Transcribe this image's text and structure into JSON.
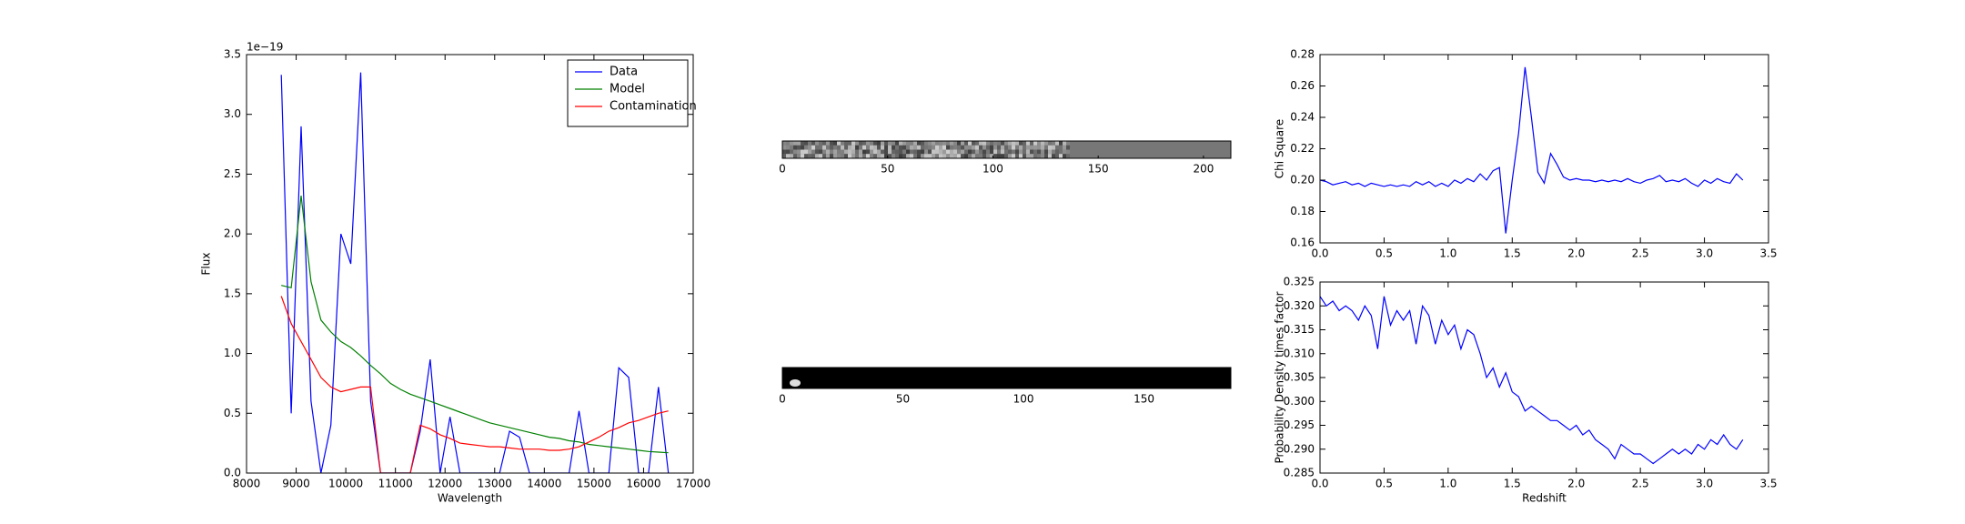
{
  "chart_data": [
    {
      "type": "line",
      "xlabel": "Wavelength",
      "ylabel": "Flux",
      "offset_label": "1e−19",
      "x": [
        8700,
        8900,
        9100,
        9300,
        9500,
        9700,
        9900,
        10100,
        10300,
        10500,
        10700,
        10900,
        11100,
        11300,
        11500,
        11700,
        11900,
        12100,
        12300,
        12500,
        12700,
        12900,
        13100,
        13300,
        13500,
        13700,
        13900,
        14100,
        14300,
        14500,
        14700,
        14900,
        15100,
        15300,
        15500,
        15700,
        15900,
        16100,
        16300,
        16500
      ],
      "series": [
        {
          "name": "Data",
          "color": "#0000ff",
          "values": [
            3.33,
            0.5,
            2.9,
            0.6,
            0,
            0.4,
            2.0,
            1.75,
            3.35,
            0.6,
            0,
            0,
            0,
            0,
            0.35,
            0.95,
            0,
            0.47,
            0,
            0,
            0,
            0,
            0,
            0.35,
            0.3,
            0,
            0,
            0,
            0,
            0,
            0.52,
            0,
            0,
            0,
            0.88,
            0.8,
            0,
            0,
            0.72,
            0
          ]
        },
        {
          "name": "Model",
          "color": "#008000",
          "values": [
            1.57,
            1.55,
            2.32,
            1.6,
            1.28,
            1.18,
            1.1,
            1.05,
            0.98,
            0.9,
            0.83,
            0.75,
            0.7,
            0.66,
            0.63,
            0.6,
            0.57,
            0.54,
            0.51,
            0.48,
            0.45,
            0.42,
            0.4,
            0.38,
            0.36,
            0.34,
            0.32,
            0.3,
            0.29,
            0.27,
            0.26,
            0.24,
            0.23,
            0.22,
            0.21,
            0.2,
            0.19,
            0.18,
            0.175,
            0.17
          ]
        },
        {
          "name": "Contamination",
          "color": "#ff0000",
          "values": [
            1.48,
            1.25,
            1.1,
            0.95,
            0.8,
            0.72,
            0.68,
            0.7,
            0.72,
            0.72,
            0,
            0,
            0,
            0,
            0.4,
            0.37,
            0.32,
            0.29,
            0.25,
            0.24,
            0.23,
            0.22,
            0.22,
            0.21,
            0.2,
            0.2,
            0.2,
            0.19,
            0.19,
            0.2,
            0.22,
            0.26,
            0.3,
            0.35,
            0.38,
            0.42,
            0.44,
            0.47,
            0.5,
            0.52
          ]
        }
      ],
      "xlim": [
        8000,
        17000
      ],
      "xticks": [
        8000,
        9000,
        10000,
        11000,
        12000,
        13000,
        14000,
        15000,
        16000,
        17000
      ],
      "ylim": [
        0,
        3.5
      ],
      "yticks": [
        {
          "value": 0,
          "label": "0.0"
        },
        0.5,
        {
          "value": 1,
          "label": "1.0"
        },
        1.5,
        {
          "value": 2,
          "label": "2.0"
        },
        2.5,
        {
          "value": 3,
          "label": "3.0"
        },
        3.5
      ],
      "legend": "upper right"
    },
    {
      "type": "image",
      "xlim": [
        0,
        213
      ],
      "xticks": [
        0,
        50,
        100,
        150,
        200
      ]
    },
    {
      "type": "image",
      "xlim": [
        0,
        186
      ],
      "xticks": [
        0,
        50,
        100,
        150
      ]
    },
    {
      "type": "line",
      "ylabel": "Chi Square",
      "color": "#0000ff",
      "x": [
        0,
        0.05,
        0.1,
        0.15,
        0.2,
        0.25,
        0.3,
        0.35,
        0.4,
        0.45,
        0.5,
        0.55,
        0.6,
        0.65,
        0.7,
        0.75,
        0.8,
        0.85,
        0.9,
        0.95,
        1.0,
        1.05,
        1.1,
        1.15,
        1.2,
        1.25,
        1.3,
        1.35,
        1.4,
        1.45,
        1.5,
        1.55,
        1.6,
        1.65,
        1.7,
        1.75,
        1.8,
        1.85,
        1.9,
        1.95,
        2.0,
        2.05,
        2.1,
        2.15,
        2.2,
        2.25,
        2.3,
        2.35,
        2.4,
        2.45,
        2.5,
        2.55,
        2.6,
        2.65,
        2.7,
        2.75,
        2.8,
        2.85,
        2.9,
        2.95,
        3.0,
        3.05,
        3.1,
        3.15,
        3.2,
        3.25,
        3.3
      ],
      "values": [
        0.2,
        0.199,
        0.197,
        0.198,
        0.199,
        0.197,
        0.198,
        0.196,
        0.198,
        0.197,
        0.196,
        0.197,
        0.196,
        0.197,
        0.196,
        0.199,
        0.197,
        0.199,
        0.196,
        0.198,
        0.196,
        0.2,
        0.198,
        0.201,
        0.199,
        0.204,
        0.2,
        0.206,
        0.208,
        0.166,
        0.2,
        0.23,
        0.272,
        0.24,
        0.205,
        0.198,
        0.217,
        0.21,
        0.202,
        0.2,
        0.201,
        0.2,
        0.2,
        0.199,
        0.2,
        0.199,
        0.2,
        0.199,
        0.201,
        0.199,
        0.198,
        0.2,
        0.201,
        0.203,
        0.199,
        0.2,
        0.199,
        0.201,
        0.198,
        0.196,
        0.2,
        0.198,
        0.201,
        0.199,
        0.198,
        0.204,
        0.2
      ],
      "xlim": [
        0,
        3.5
      ],
      "xticks": [
        {
          "value": 0,
          "label": "0.0"
        },
        0.5,
        {
          "value": 1,
          "label": "1.0"
        },
        1.5,
        {
          "value": 2,
          "label": "2.0"
        },
        2.5,
        {
          "value": 3,
          "label": "3.0"
        },
        3.5
      ],
      "ylim": [
        0.16,
        0.28
      ],
      "yticks": [
        0.16,
        0.18,
        {
          "value": 0.2,
          "label": "0.20"
        },
        0.22,
        0.24,
        0.26,
        0.28
      ]
    },
    {
      "type": "line",
      "xlabel": "Redshift",
      "ylabel": "Probability Density times factor",
      "color": "#0000ff",
      "x": [
        0,
        0.05,
        0.1,
        0.15,
        0.2,
        0.25,
        0.3,
        0.35,
        0.4,
        0.45,
        0.5,
        0.55,
        0.6,
        0.65,
        0.7,
        0.75,
        0.8,
        0.85,
        0.9,
        0.95,
        1.0,
        1.05,
        1.1,
        1.15,
        1.2,
        1.25,
        1.3,
        1.35,
        1.4,
        1.45,
        1.5,
        1.55,
        1.6,
        1.65,
        1.7,
        1.75,
        1.8,
        1.85,
        1.9,
        1.95,
        2.0,
        2.05,
        2.1,
        2.15,
        2.2,
        2.25,
        2.3,
        2.35,
        2.4,
        2.45,
        2.5,
        2.55,
        2.6,
        2.65,
        2.7,
        2.75,
        2.8,
        2.85,
        2.9,
        2.95,
        3.0,
        3.05,
        3.1,
        3.15,
        3.2,
        3.25,
        3.3
      ],
      "values": [
        0.322,
        0.32,
        0.321,
        0.319,
        0.32,
        0.319,
        0.317,
        0.32,
        0.318,
        0.311,
        0.322,
        0.316,
        0.319,
        0.317,
        0.319,
        0.312,
        0.32,
        0.318,
        0.312,
        0.317,
        0.314,
        0.316,
        0.311,
        0.315,
        0.314,
        0.31,
        0.305,
        0.307,
        0.303,
        0.306,
        0.302,
        0.301,
        0.298,
        0.299,
        0.298,
        0.297,
        0.296,
        0.296,
        0.295,
        0.294,
        0.295,
        0.293,
        0.294,
        0.292,
        0.291,
        0.29,
        0.288,
        0.291,
        0.29,
        0.289,
        0.289,
        0.288,
        0.287,
        0.288,
        0.289,
        0.29,
        0.289,
        0.29,
        0.289,
        0.291,
        0.29,
        0.292,
        0.291,
        0.293,
        0.291,
        0.29,
        0.292
      ],
      "xlim": [
        0,
        3.5
      ],
      "xticks": [
        {
          "value": 0,
          "label": "0.0"
        },
        0.5,
        {
          "value": 1,
          "label": "1.0"
        },
        1.5,
        {
          "value": 2,
          "label": "2.0"
        },
        2.5,
        {
          "value": 3,
          "label": "3.0"
        },
        3.5
      ],
      "ylim": [
        0.285,
        0.325
      ],
      "yticks": [
        0.285,
        {
          "value": 0.29,
          "label": "0.290"
        },
        0.295,
        {
          "value": 0.3,
          "label": "0.300"
        },
        0.305,
        {
          "value": 0.31,
          "label": "0.310"
        },
        0.315,
        {
          "value": 0.32,
          "label": "0.320"
        },
        0.325
      ]
    }
  ]
}
